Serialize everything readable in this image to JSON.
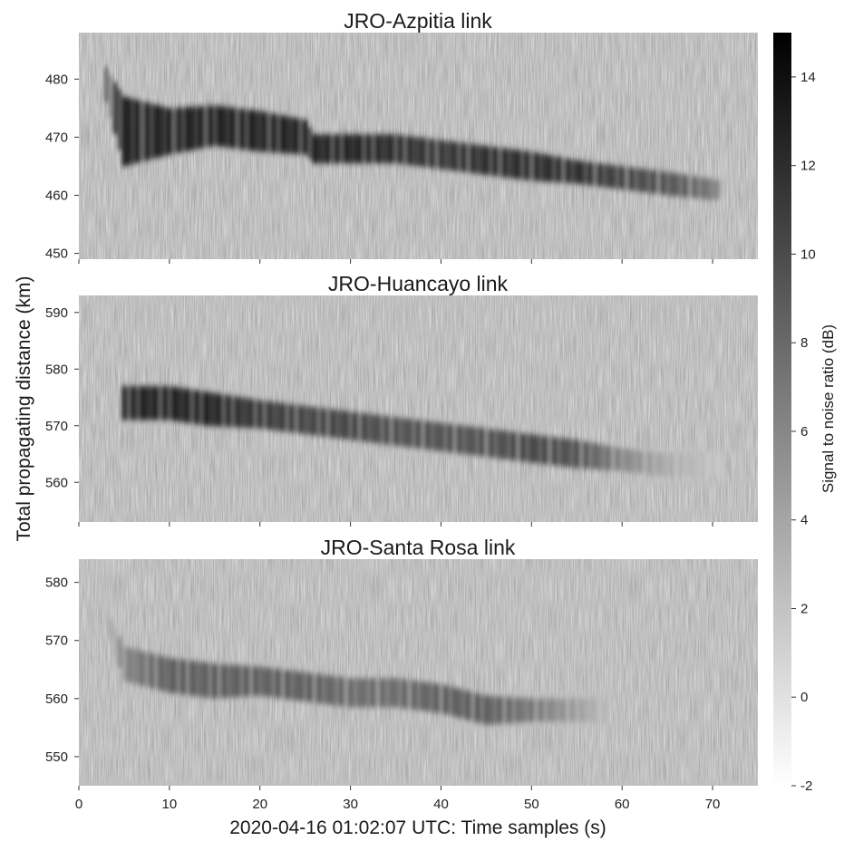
{
  "ylabel": "Total propagating distance (km)",
  "chart_data": [
    {
      "type": "heatmap",
      "title": "JRO-Azpitia link",
      "xlabel": "",
      "xlim": [
        0,
        75
      ],
      "ylim": [
        449,
        488
      ],
      "yticks": [
        450,
        460,
        470,
        480
      ],
      "ridge": {
        "x": [
          3,
          5,
          10,
          15,
          20,
          25,
          26,
          30,
          35,
          40,
          45,
          50,
          55,
          60,
          65,
          70,
          71
        ],
        "center": [
          479,
          471,
          471,
          472,
          471,
          470,
          468,
          468,
          468,
          467,
          466,
          465,
          464,
          463,
          462,
          461,
          461
        ],
        "halfwidth": [
          3,
          6,
          4,
          3.5,
          3.5,
          3,
          2.5,
          2.5,
          2.5,
          2.5,
          2.5,
          2.5,
          2,
          2,
          2,
          1.8,
          1.5
        ],
        "peak_snr": [
          8,
          15,
          15,
          15,
          15,
          15,
          15,
          15,
          14,
          13,
          14,
          14,
          14,
          12,
          11,
          8,
          5
        ]
      }
    },
    {
      "type": "heatmap",
      "title": "JRO-Huancayo link",
      "xlabel": "",
      "xlim": [
        0,
        75
      ],
      "ylim": [
        553,
        593
      ],
      "yticks": [
        560,
        570,
        580,
        590
      ],
      "ridge": {
        "x": [
          5,
          10,
          14,
          20,
          25,
          30,
          35,
          40,
          45,
          50,
          55,
          60,
          65,
          71
        ],
        "center": [
          574,
          574,
          573,
          572,
          571,
          570,
          569,
          568,
          567,
          566,
          565,
          564,
          563,
          563
        ],
        "halfwidth": [
          3,
          3,
          3,
          2.5,
          2.5,
          2.5,
          2.5,
          2.5,
          2.5,
          2.5,
          2.5,
          2,
          2,
          2
        ],
        "peak_snr": [
          15,
          15,
          15,
          13,
          12,
          12,
          11,
          11,
          11,
          12,
          11,
          7,
          4,
          2
        ]
      }
    },
    {
      "type": "heatmap",
      "title": "JRO-Santa Rosa link",
      "xlabel": "2020-04-16 01:02:07 UTC: Time samples (s)",
      "xlim": [
        0,
        75
      ],
      "xticks": [
        0,
        10,
        20,
        30,
        40,
        50,
        60,
        70
      ],
      "ylim": [
        545,
        584
      ],
      "yticks": [
        550,
        560,
        570,
        580
      ],
      "ridge": {
        "x": [
          3,
          5,
          10,
          15,
          20,
          25,
          30,
          35,
          40,
          45,
          50,
          55,
          58
        ],
        "center": [
          574,
          566,
          564,
          563,
          563,
          562,
          561,
          561,
          560,
          558,
          558,
          558,
          558
        ],
        "halfwidth": [
          1.5,
          3,
          3,
          3,
          2.5,
          2.5,
          2.5,
          2.5,
          2.5,
          2.5,
          2,
          2,
          2
        ],
        "peak_snr": [
          3,
          7,
          10,
          10,
          10,
          10,
          9,
          9,
          10,
          10,
          8,
          5,
          3
        ]
      }
    }
  ],
  "colorbar": {
    "label": "Signal to noise ratio (dB)",
    "range": [
      -2,
      15
    ],
    "ticks": [
      -2,
      0,
      2,
      4,
      6,
      8,
      10,
      12,
      14
    ],
    "colormap": "gray_r",
    "low_color": "#ffffff",
    "high_color": "#000000"
  }
}
